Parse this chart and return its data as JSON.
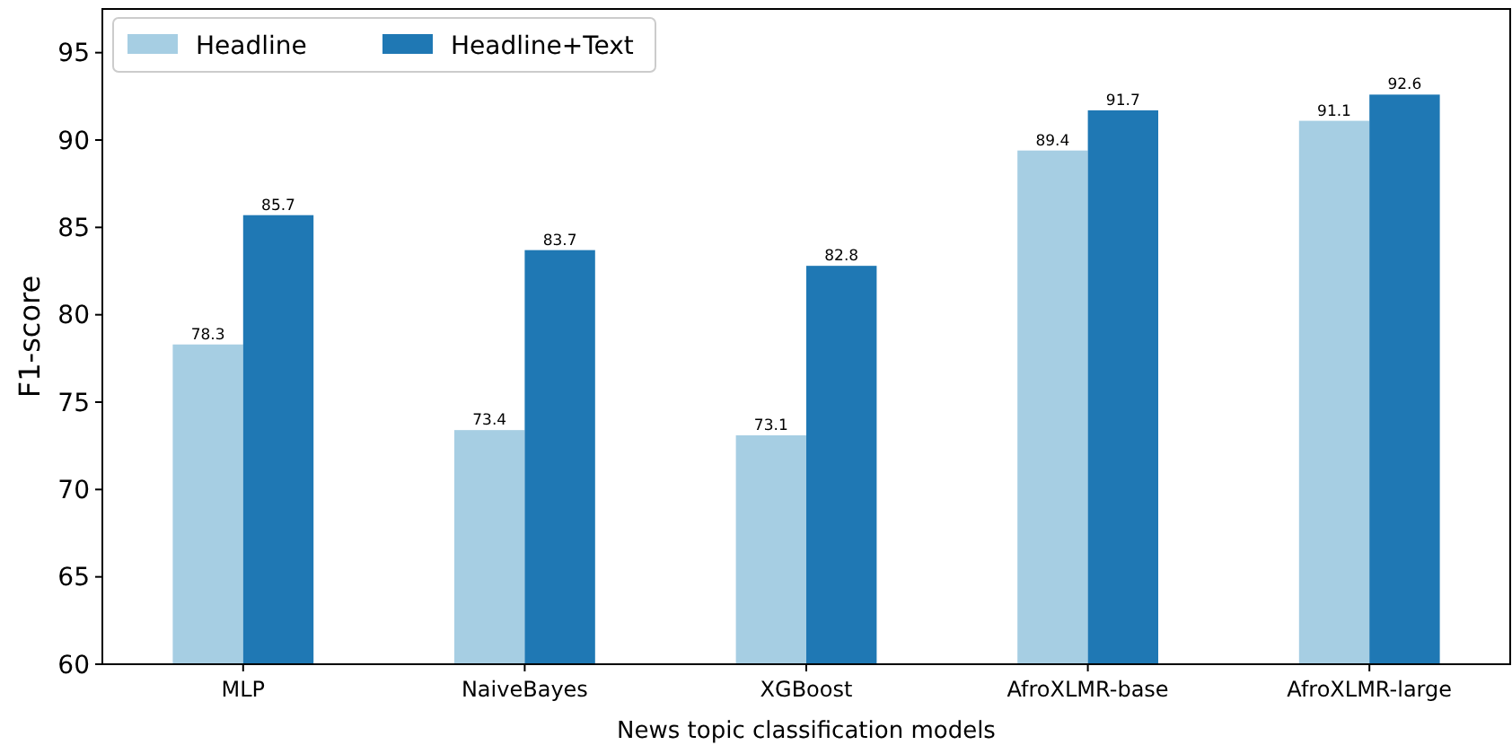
{
  "chart_data": {
    "type": "bar",
    "xlabel": "News topic classification models",
    "ylabel": "F1-score",
    "categories": [
      "MLP",
      "NaiveBayes",
      "XGBoost",
      "AfroXLMR-base",
      "AfroXLMR-large"
    ],
    "series": [
      {
        "name": "Headline",
        "color": "#a6cee3",
        "values": [
          78.3,
          73.4,
          73.1,
          89.4,
          91.1
        ]
      },
      {
        "name": "Headline+Text",
        "color": "#1f78b4",
        "values": [
          85.7,
          83.7,
          82.8,
          91.7,
          92.6
        ]
      }
    ],
    "ylim": [
      60,
      97.5
    ],
    "yticks": [
      60,
      65,
      70,
      75,
      80,
      85,
      90,
      95
    ],
    "data_labels": true,
    "legend": "top left",
    "grid": false
  }
}
